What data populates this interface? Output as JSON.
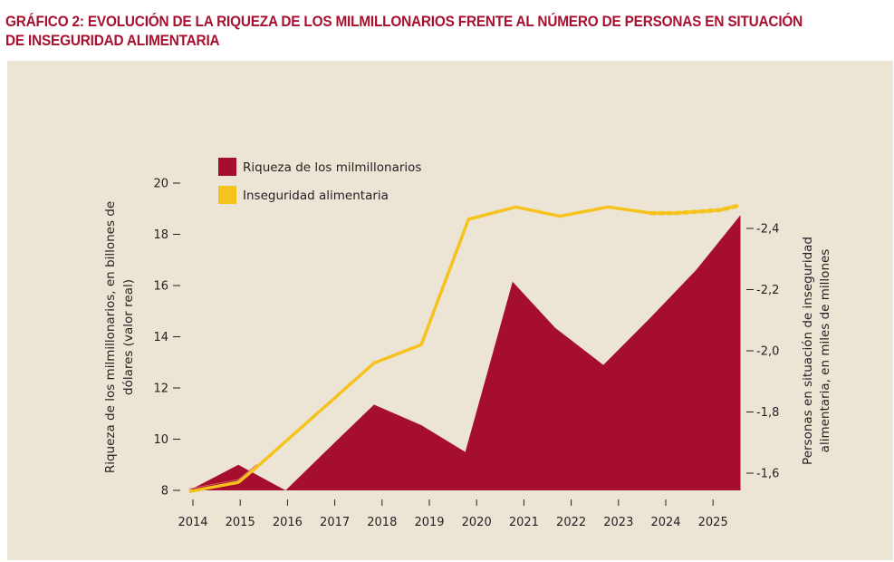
{
  "title": "GRÁFICO 2: EVOLUCIÓN DE LA RIQUEZA DE LOS MILMILLONARIOS FRENTE AL NÚMERO DE PERSONAS EN SITUACIÓN DE INSEGURIDAD ALIMENTARIA",
  "colors": {
    "title": "#a8102f",
    "panel_bg": "#ece5d6",
    "wealth": "#a50f2d",
    "food_insecurity": "#f6c21c",
    "text": "#231f20"
  },
  "chart_data": {
    "type": "area",
    "title": "GRÁFICO 2: EVOLUCIÓN DE LA RIQUEZA DE LOS MILMILLONARIOS FRENTE AL NÚMERO DE PERSONAS EN SITUACIÓN DE INSEGURIDAD ALIMENTARIA",
    "xlabel": "",
    "x_ticks": [
      "2014",
      "2015",
      "2016",
      "2017",
      "2018",
      "2019",
      "2020",
      "2021",
      "2022",
      "2023",
      "2024",
      "2025"
    ],
    "xlim": [
      2014,
      2025.6
    ],
    "left_axis": {
      "label": "Riqueza de los milmillonarios, en billones de dólares (valor real)",
      "ylim": [
        8,
        20
      ],
      "ticks": [
        "8",
        "10",
        "12",
        "14",
        "16",
        "18",
        "20"
      ],
      "tick_values": [
        8,
        10,
        12,
        14,
        16,
        18,
        20
      ]
    },
    "right_axis": {
      "label": "Personas en situación de inseguridad alimentaria, en miles de millones",
      "ylim": [
        -1.6,
        -2.4
      ],
      "ticks": [
        "-1,6",
        "-1,8",
        "-2,0",
        "-2,2",
        "-2,4"
      ],
      "tick_values": [
        -1.6,
        -1.8,
        -2.0,
        -2.2,
        -2.4
      ]
    },
    "legend": {
      "placement": "top-left",
      "entries": [
        "Riqueza de los milmillonarios",
        "Inseguridad alimentaria"
      ]
    },
    "series": [
      {
        "name": "Riqueza de los milmillonarios",
        "type": "area",
        "axis": "left",
        "x": [
          2013.92,
          2014.96,
          2015.96,
          2016.82,
          2017.83,
          2018.83,
          2019.76,
          2020.76,
          2021.66,
          2022.68,
          2023.68,
          2024.64,
          2025.58
        ],
        "values": [
          8.0,
          9.0,
          8.0,
          9.55,
          11.35,
          10.55,
          9.5,
          16.15,
          14.35,
          12.9,
          14.75,
          16.6,
          18.75
        ]
      },
      {
        "name": "Inseguridad alimentaria",
        "type": "line",
        "axis": "right",
        "x": [
          2013.92,
          2014.96,
          2015.35,
          2017.83,
          2018.83,
          2019.83,
          2020.83,
          2021.76,
          2022.78,
          2023.69
        ],
        "values": [
          -1.54,
          -1.57,
          -1.62,
          -1.96,
          -2.02,
          -2.43,
          -2.47,
          -2.44,
          -2.47,
          -2.45
        ]
      },
      {
        "name": "Inseguridad alimentaria (proyección)",
        "type": "line-dashed",
        "axis": "right",
        "x": [
          2023.69,
          2024.2,
          2024.7,
          2025.15,
          2025.55
        ],
        "values": [
          -2.45,
          -2.45,
          -2.455,
          -2.46,
          -2.475
        ]
      }
    ]
  }
}
